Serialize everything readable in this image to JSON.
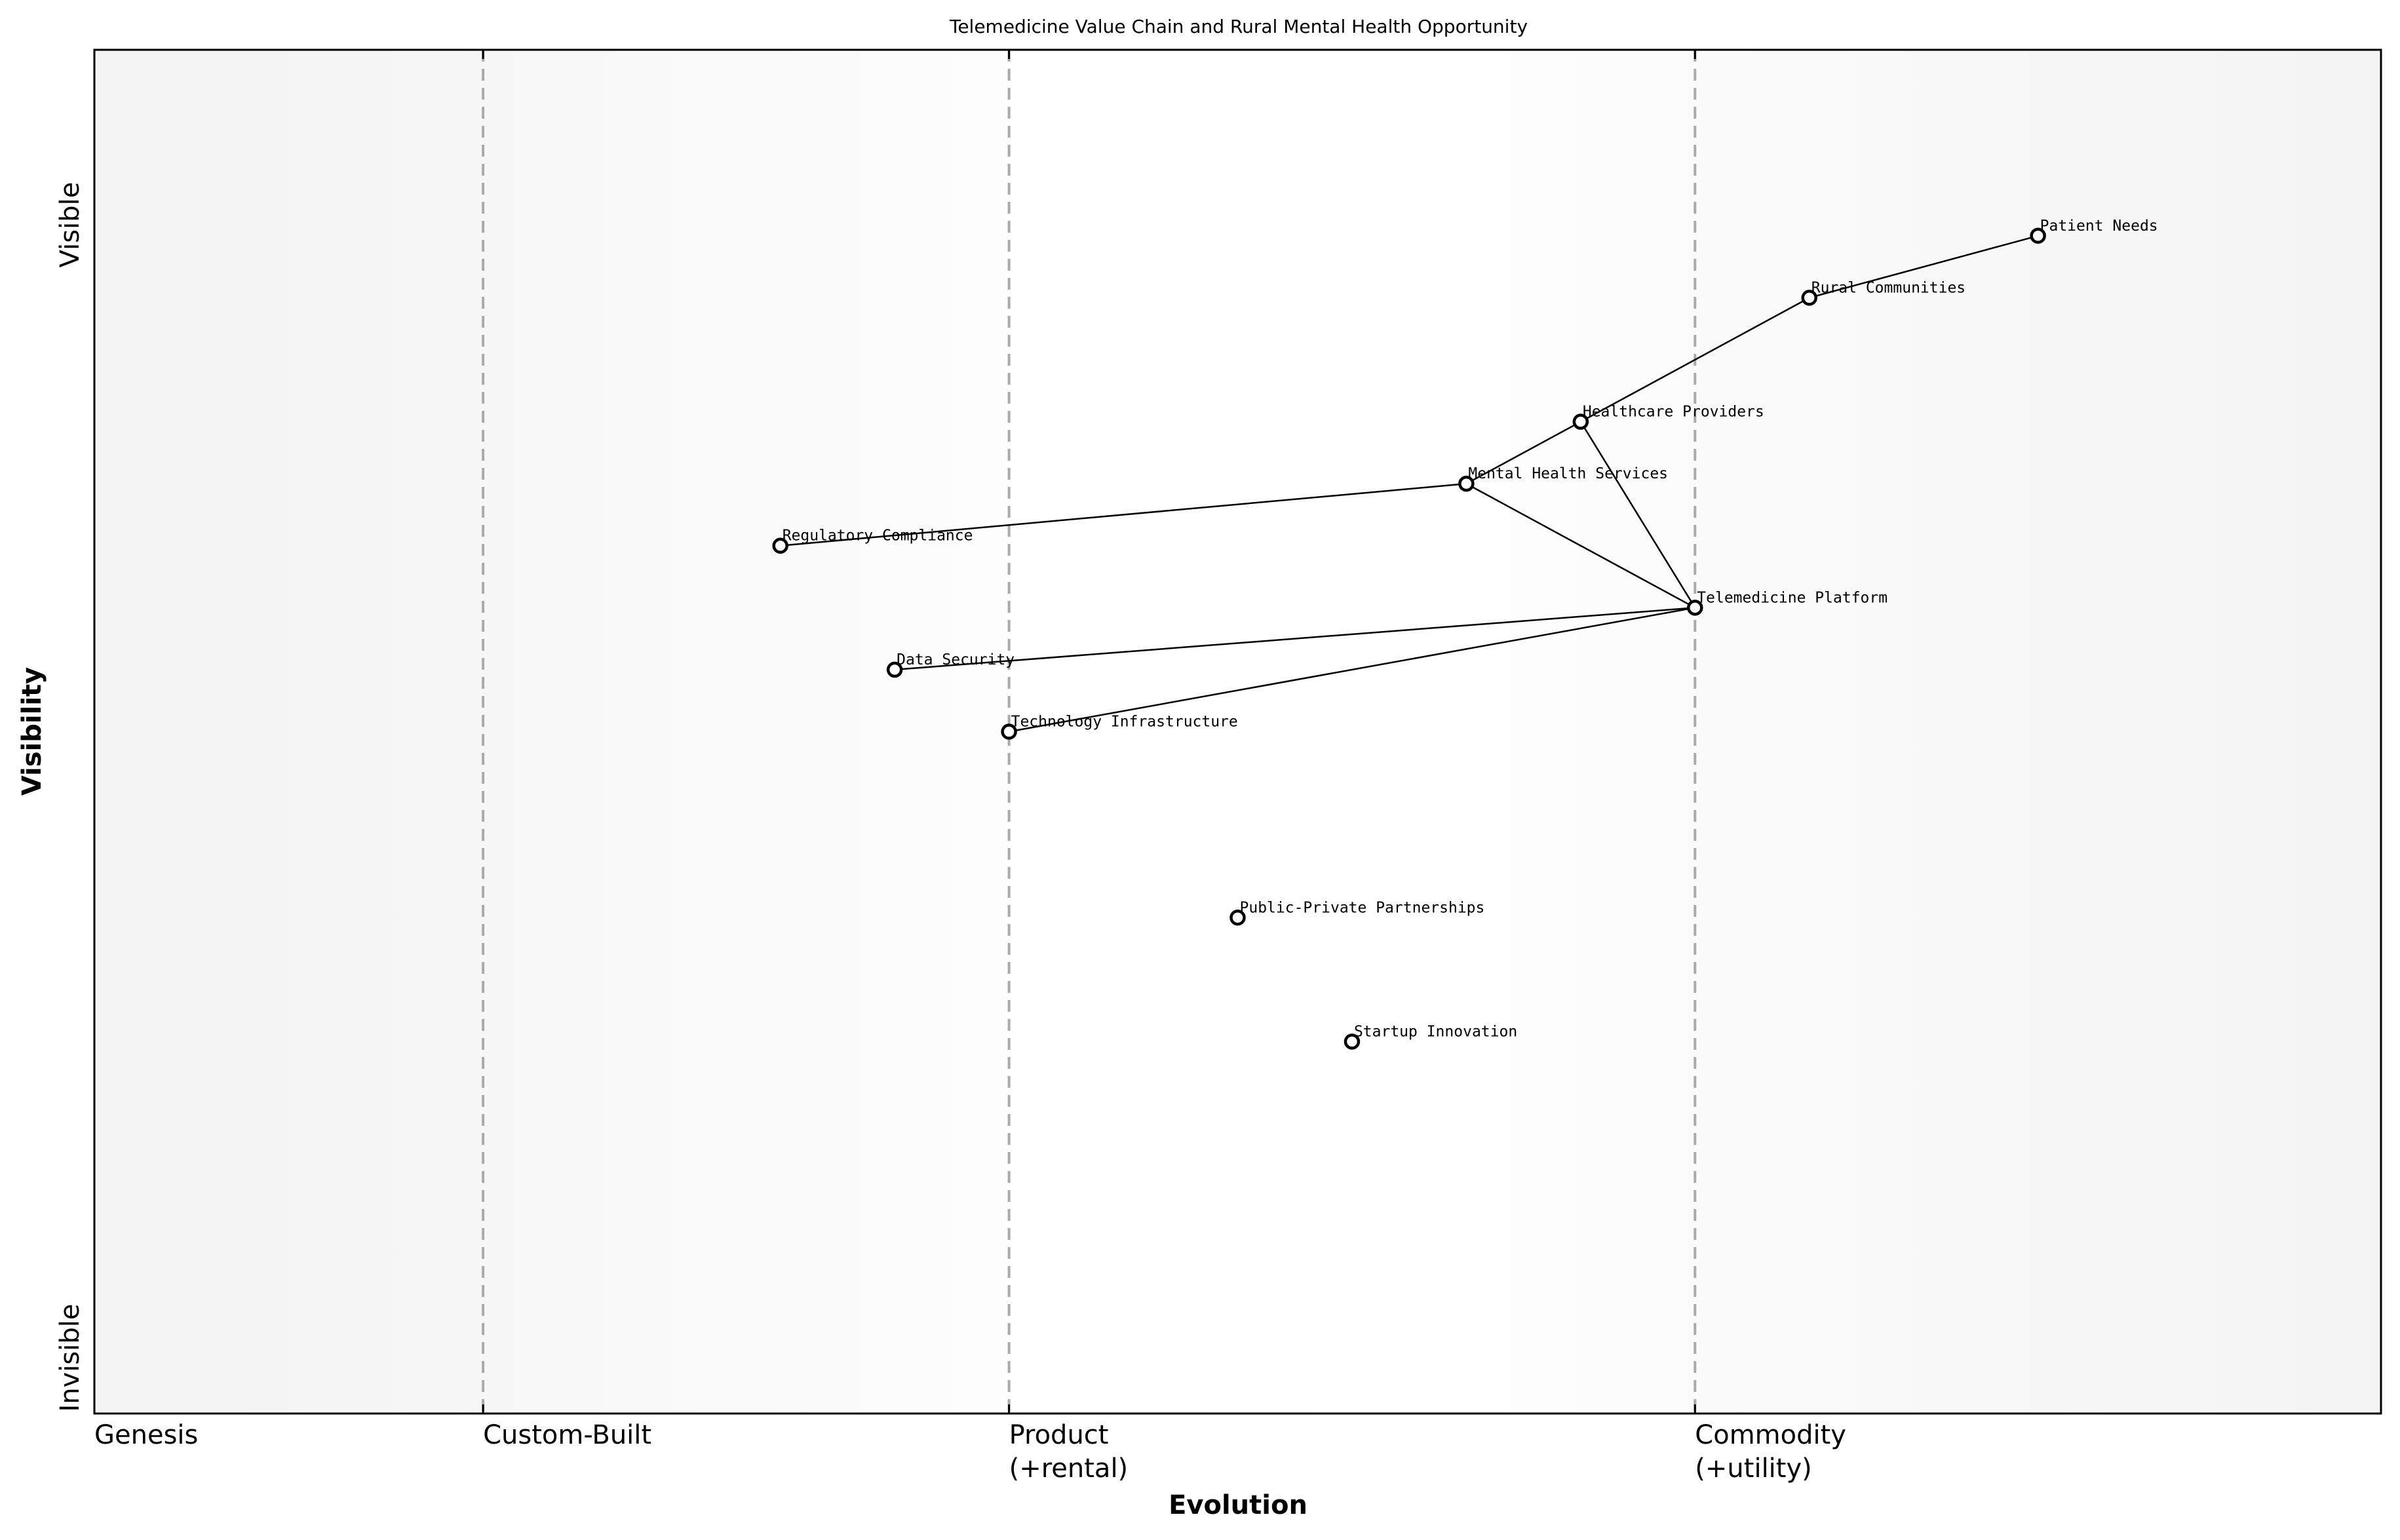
{
  "title": "Telemedicine Value Chain and Rural Mental Health Opportunity",
  "axes": {
    "xlabel": "Evolution",
    "ylabel": "Visibility",
    "y_ticks": {
      "top": "Visible",
      "bottom": "Invisible"
    },
    "x_ticks": [
      {
        "label": "Genesis",
        "label2": "",
        "x": 0.0
      },
      {
        "label": "Custom-Built",
        "label2": "",
        "x": 0.17
      },
      {
        "label": "Product",
        "label2": "(+rental)",
        "x": 0.4
      },
      {
        "label": "Commodity",
        "label2": "(+utility)",
        "x": 0.7
      }
    ]
  },
  "colors": {
    "background_edge": "#f5f5f5",
    "background_center": "#ffffff",
    "stage_divider": "#aaaaaa",
    "node_stroke": "#000000",
    "node_fill": "#ffffff",
    "link": "#000000"
  },
  "chart_data": {
    "type": "wardley_map",
    "title": "Telemedicine Value Chain and Rural Mental Health Opportunity",
    "xlabel": "Evolution",
    "ylabel": "Visibility",
    "xlim": [
      0,
      1
    ],
    "ylim": [
      0,
      1.1
    ],
    "stage_boundaries": [
      0.17,
      0.4,
      0.7
    ],
    "stages": [
      "Genesis",
      "Custom-Built",
      "Product (+rental)",
      "Commodity (+utility)"
    ],
    "nodes": [
      {
        "name": "Patient Needs",
        "evolution": 0.85,
        "visibility": 0.95
      },
      {
        "name": "Rural Communities",
        "evolution": 0.75,
        "visibility": 0.9
      },
      {
        "name": "Healthcare Providers",
        "evolution": 0.65,
        "visibility": 0.8
      },
      {
        "name": "Mental Health Services",
        "evolution": 0.6,
        "visibility": 0.75
      },
      {
        "name": "Regulatory Compliance",
        "evolution": 0.3,
        "visibility": 0.7
      },
      {
        "name": "Telemedicine Platform",
        "evolution": 0.7,
        "visibility": 0.65
      },
      {
        "name": "Data Security",
        "evolution": 0.35,
        "visibility": 0.6
      },
      {
        "name": "Technology Infrastructure",
        "evolution": 0.4,
        "visibility": 0.55
      },
      {
        "name": "Public-Private Partnerships",
        "evolution": 0.5,
        "visibility": 0.4
      },
      {
        "name": "Startup Innovation",
        "evolution": 0.55,
        "visibility": 0.3
      }
    ],
    "links": [
      [
        "Patient Needs",
        "Rural Communities"
      ],
      [
        "Rural Communities",
        "Healthcare Providers"
      ],
      [
        "Healthcare Providers",
        "Mental Health Services"
      ],
      [
        "Healthcare Providers",
        "Telemedicine Platform"
      ],
      [
        "Mental Health Services",
        "Telemedicine Platform"
      ],
      [
        "Mental Health Services",
        "Regulatory Compliance"
      ],
      [
        "Telemedicine Platform",
        "Data Security"
      ],
      [
        "Telemedicine Platform",
        "Technology Infrastructure"
      ]
    ]
  }
}
